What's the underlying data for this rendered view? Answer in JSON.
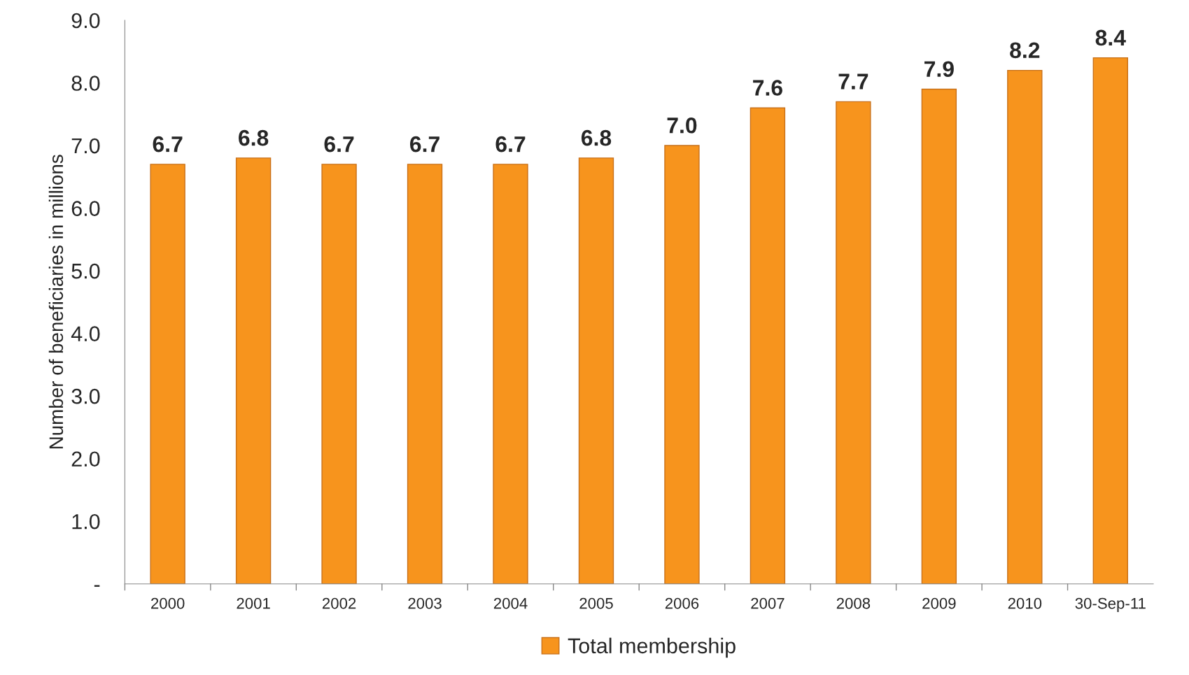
{
  "chart_data": {
    "type": "bar",
    "ylabel": "Number of beneficiaries in millions",
    "categories": [
      "2000",
      "2001",
      "2002",
      "2003",
      "2004",
      "2005",
      "2006",
      "2007",
      "2008",
      "2009",
      "2010",
      "30-Sep-11"
    ],
    "series": [
      {
        "name": "Total membership",
        "color": "#f7941d",
        "values": [
          6.7,
          6.8,
          6.7,
          6.7,
          6.7,
          6.8,
          7.0,
          7.6,
          7.7,
          7.9,
          8.2,
          8.4
        ],
        "value_labels": [
          "6.7",
          "6.8",
          "6.7",
          "6.7",
          "6.7",
          "6.8",
          "7.0",
          "7.6",
          "7.7",
          "7.9",
          "8.2",
          "8.4"
        ]
      }
    ],
    "ylim": [
      0,
      9
    ],
    "yticks": [
      {
        "value": 0,
        "label": "-"
      },
      {
        "value": 1,
        "label": "1.0"
      },
      {
        "value": 2,
        "label": "2.0"
      },
      {
        "value": 3,
        "label": "3.0"
      },
      {
        "value": 4,
        "label": "4.0"
      },
      {
        "value": 5,
        "label": "5.0"
      },
      {
        "value": 6,
        "label": "6.0"
      },
      {
        "value": 7,
        "label": "7.0"
      },
      {
        "value": 8,
        "label": "8.0"
      },
      {
        "value": 9,
        "label": "9.0"
      }
    ],
    "grid": false,
    "legend": "bottom"
  }
}
